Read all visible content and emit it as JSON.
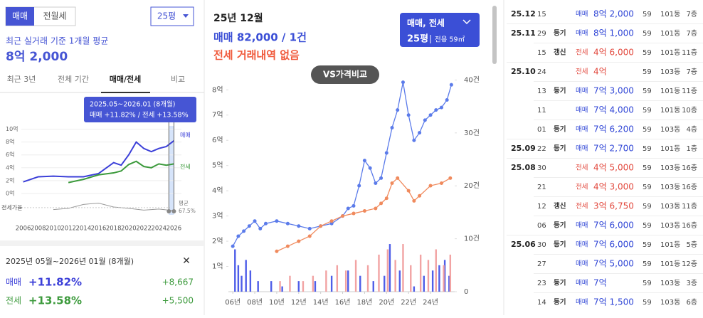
{
  "left_panel": {
    "toggle": [
      "매매",
      "전월세"
    ],
    "size_select": "25평",
    "avg_label": "최근 실거래 기준 1개월 평균",
    "avg_price": "8억 2,000",
    "tabs": [
      "최근 3년",
      "전체 기간",
      "매매/전세",
      "비교"
    ],
    "tooltip": {
      "title": "2025.05~2026.01 (8개월)",
      "text": "매매 +11.82%  /  전세 +13.58%"
    },
    "summary": {
      "title": "2025년 05월~2026년 01월 (8개월)",
      "close": "✕",
      "rows": [
        {
          "label": "매매",
          "change": "+11.82%",
          "diff": "+8,667"
        },
        {
          "label": "전세",
          "change": "+13.58%",
          "diff": "+5,500"
        }
      ]
    }
  },
  "middle_panel": {
    "month": "25년 12월",
    "sale_summary": "매매 82,000 / 1건",
    "jeonse_summary": "전세 거래내역 없음",
    "filter": {
      "kind": "매매, 전세",
      "size": "25평",
      "area": "전용 59㎡"
    },
    "compare_button": "VS가격비교"
  },
  "chart_data": [
    {
      "type": "line",
      "xlim": [
        2005,
        2027
      ],
      "ylim": [
        0,
        10.5
      ],
      "xticks": [
        2006,
        2008,
        2010,
        2012,
        2014,
        2016,
        2018,
        2020,
        2022,
        2024,
        2026
      ],
      "yticks": [
        {
          "value": 0,
          "label": "0억"
        },
        {
          "value": 2,
          "label": "2억"
        },
        {
          "value": 4,
          "label": "4억"
        },
        {
          "value": 6,
          "label": "6억"
        },
        {
          "value": 8,
          "label": "8억"
        },
        {
          "value": 10,
          "label": "10억"
        }
      ],
      "highlight_x": [
        2025.33,
        2026.0
      ],
      "series": [
        {
          "name": "매매",
          "color": "#3b3fd8",
          "x": [
            2006,
            2008,
            2010,
            2012,
            2014,
            2016,
            2018,
            2019,
            2020,
            2021,
            2022,
            2023,
            2024,
            2025,
            2026
          ],
          "values": [
            1.8,
            2.6,
            2.7,
            2.6,
            2.6,
            3.1,
            4.8,
            4.4,
            6.0,
            8.0,
            7.0,
            6.5,
            7.0,
            7.3,
            8.2
          ]
        },
        {
          "name": "전세",
          "color": "#3c9a3c",
          "x": [
            2012,
            2014,
            2016,
            2018,
            2019,
            2020,
            2021,
            2022,
            2023,
            2024,
            2025,
            2026
          ],
          "values": [
            1.7,
            2.2,
            2.9,
            3.2,
            3.5,
            4.5,
            5.0,
            4.2,
            4.0,
            4.6,
            4.4,
            4.6
          ]
        }
      ],
      "ratio": {
        "name": "전세가율",
        "color": "#999999",
        "ylim": [
          40,
          100
        ],
        "x": [
          2010,
          2012,
          2014,
          2016,
          2018,
          2020,
          2022,
          2024,
          2026
        ],
        "values": [
          60,
          65,
          80,
          85,
          70,
          65,
          58,
          62,
          56
        ],
        "average_label": "평균",
        "average": 67.5,
        "average_value_label": "67.5%"
      }
    },
    {
      "type": "line",
      "xlim": [
        2005.6,
        2026.2
      ],
      "ylim": [
        0,
        8.6
      ],
      "y2lim": [
        0,
        41
      ],
      "xticks": [
        {
          "value": 2006,
          "label": "06년"
        },
        {
          "value": 2008,
          "label": "08년"
        },
        {
          "value": 2010,
          "label": "10년"
        },
        {
          "value": 2012,
          "label": "12년"
        },
        {
          "value": 2014,
          "label": "14년"
        },
        {
          "value": 2016,
          "label": "16년"
        },
        {
          "value": 2018,
          "label": "18년"
        },
        {
          "value": 2020,
          "label": "20년"
        },
        {
          "value": 2022,
          "label": "22년"
        },
        {
          "value": 2024,
          "label": "24년"
        }
      ],
      "yticks": [
        {
          "value": 1,
          "label": "1억"
        },
        {
          "value": 2,
          "label": "2억"
        },
        {
          "value": 3,
          "label": "3억"
        },
        {
          "value": 4,
          "label": "4억"
        },
        {
          "value": 5,
          "label": "5억"
        },
        {
          "value": 6,
          "label": "6억"
        },
        {
          "value": 7,
          "label": "7억"
        },
        {
          "value": 8,
          "label": "8억"
        }
      ],
      "y2ticks": [
        0,
        {
          "value": 10,
          "label": "10건"
        },
        {
          "value": 20,
          "label": "20건"
        },
        {
          "value": 30,
          "label": "30건"
        },
        {
          "value": 40,
          "label": "40건"
        }
      ],
      "series": [
        {
          "type": "bar",
          "axis": "y2",
          "color": "#4f5ee8",
          "x": [
            2006.2,
            2006.5,
            2006.8,
            2007.2,
            2007.6,
            2008.3,
            2009.5,
            2010.5,
            2012,
            2013.5,
            2015,
            2016.5,
            2017.6,
            2018.8,
            2019.8,
            2020.3,
            2021.2,
            2022.5,
            2023.4,
            2024.2,
            2024.8,
            2025.3,
            2025.7
          ],
          "values": [
            8,
            5,
            3,
            6,
            4,
            2,
            2,
            1,
            2,
            2,
            3,
            4,
            3,
            2,
            3,
            9,
            4,
            1,
            3,
            4,
            5,
            6,
            3
          ]
        },
        {
          "type": "bar",
          "axis": "y2",
          "color": "#f2a3a3",
          "x": [
            2010.3,
            2011.2,
            2012.4,
            2013.3,
            2014.5,
            2015.5,
            2016.3,
            2017.2,
            2018.3,
            2019.3,
            2020.1,
            2020.8,
            2021.5,
            2022.2,
            2023.1,
            2023.8,
            2024.5,
            2025.2,
            2025.8
          ],
          "values": [
            2,
            3,
            2,
            3,
            4,
            5,
            4,
            6,
            5,
            7,
            8,
            6,
            9,
            5,
            7,
            6,
            8,
            5,
            7
          ]
        },
        {
          "type": "line",
          "color": "#5b7bea",
          "x": [
            2006,
            2006.5,
            2007,
            2007.5,
            2008,
            2008.5,
            2009,
            2010,
            2011,
            2012,
            2013,
            2014,
            2015,
            2016,
            2016.5,
            2017,
            2017.5,
            2018,
            2018.5,
            2019,
            2019.5,
            2020,
            2020.5,
            2021,
            2021.5,
            2022,
            2022.5,
            2023,
            2023.5,
            2024,
            2024.5,
            2025,
            2025.5,
            2025.9
          ],
          "values": [
            1.8,
            2.2,
            2.4,
            2.6,
            2.8,
            2.5,
            2.7,
            2.8,
            2.7,
            2.6,
            2.5,
            2.6,
            2.7,
            3.0,
            3.3,
            3.4,
            4.2,
            5.2,
            4.9,
            4.3,
            4.5,
            5.5,
            6.5,
            7.2,
            8.3,
            7.0,
            6.0,
            6.3,
            6.8,
            7.0,
            7.2,
            7.3,
            7.6,
            8.2
          ]
        },
        {
          "type": "line",
          "color": "#f08a5d",
          "x": [
            2010,
            2011,
            2012,
            2013,
            2014,
            2015,
            2016,
            2017,
            2018,
            2019,
            2019.5,
            2020,
            2020.5,
            2021,
            2022,
            2022.5,
            2023,
            2024,
            2025,
            2025.8
          ],
          "values": [
            1.6,
            1.8,
            2.0,
            2.2,
            2.6,
            2.8,
            3.0,
            3.1,
            3.2,
            3.3,
            3.5,
            3.7,
            4.3,
            4.5,
            4.0,
            3.6,
            3.8,
            4.2,
            4.3,
            4.5
          ]
        }
      ]
    }
  ],
  "table": {
    "rows": [
      {
        "month": "25.12",
        "day": "15",
        "kind": "매매",
        "price": "8억 2,000",
        "area": "59",
        "dong": "101동",
        "floor": "7층"
      },
      {
        "month": "25.11",
        "day": "29",
        "tag": "등기",
        "kind": "매매",
        "price": "8억 1,000",
        "area": "59",
        "dong": "101동",
        "floor": "7층"
      },
      {
        "day": "15",
        "tag": "갱신",
        "kind": "전세",
        "price": "4억 6,000",
        "area": "59",
        "dong": "101동",
        "floor": "11층"
      },
      {
        "month": "25.10",
        "day": "24",
        "kind": "전세",
        "price": "4억",
        "area": "59",
        "dong": "103동",
        "floor": "7층"
      },
      {
        "day": "13",
        "tag": "등기",
        "kind": "매매",
        "price": "7억 3,000",
        "area": "59",
        "dong": "101동",
        "floor": "11층"
      },
      {
        "day": "11",
        "kind": "매매",
        "price": "7억 4,000",
        "area": "59",
        "dong": "101동",
        "floor": "10층"
      },
      {
        "day": "01",
        "tag": "등기",
        "kind": "매매",
        "price": "7억 6,200",
        "area": "59",
        "dong": "103동",
        "floor": "4층"
      },
      {
        "month": "25.09",
        "day": "22",
        "tag": "등기",
        "kind": "매매",
        "price": "7억 2,700",
        "area": "59",
        "dong": "101동",
        "floor": "1층"
      },
      {
        "month": "25.08",
        "day": "30",
        "kind": "전세",
        "price": "4억 5,000",
        "area": "59",
        "dong": "103동",
        "floor": "16층"
      },
      {
        "day": "21",
        "kind": "전세",
        "price": "4억 3,000",
        "area": "59",
        "dong": "103동",
        "floor": "16층"
      },
      {
        "day": "12",
        "tag": "갱신",
        "kind": "전세",
        "price": "3억 6,750",
        "area": "59",
        "dong": "103동",
        "floor": "11층"
      },
      {
        "day": "06",
        "tag": "등기",
        "kind": "매매",
        "price": "7억 6,000",
        "area": "59",
        "dong": "103동",
        "floor": "16층"
      },
      {
        "month": "25.06",
        "day": "30",
        "tag": "등기",
        "kind": "매매",
        "price": "7억 6,000",
        "area": "59",
        "dong": "101동",
        "floor": "5층"
      },
      {
        "day": "27",
        "kind": "매매",
        "price": "7억 5,000",
        "area": "59",
        "dong": "101동",
        "floor": "12층"
      },
      {
        "day": "23",
        "tag": "등기",
        "kind": "매매",
        "price": "7억",
        "area": "59",
        "dong": "103동",
        "floor": "3층"
      },
      {
        "day": "14",
        "tag": "등기",
        "kind": "매매",
        "price": "7억 1,500",
        "area": "59",
        "dong": "103동",
        "floor": "6층"
      }
    ]
  }
}
